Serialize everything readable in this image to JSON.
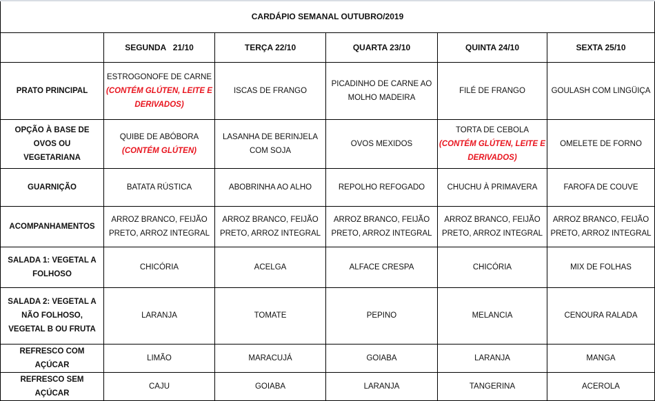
{
  "title": "CARDÁPIO SEMANAL OUTUBRO/2019",
  "days": [
    "SEGUNDA   21/10",
    "TERÇA 22/10",
    "QUARTA 23/10",
    "QUINTA 24/10",
    "SEXTA 25/10"
  ],
  "note_color": "#e8141e",
  "rows": [
    {
      "label": "PRATO PRINCIPAL",
      "cells": [
        {
          "text": "ESTROGONOFE DE CARNE",
          "note": "(CONTÉM GLÚTEN, LEITE E DERIVADOS)"
        },
        {
          "text": "ISCAS DE FRANGO"
        },
        {
          "text": "PICADINHO DE CARNE AO MOLHO MADEIRA"
        },
        {
          "text": "FILÉ DE FRANGO"
        },
        {
          "text": "GOULASH COM LINGÜIÇA"
        }
      ]
    },
    {
      "label": "OPÇÃO À BASE DE OVOS OU VEGETARIANA",
      "cells": [
        {
          "text": "QUIBE DE ABÓBORA",
          "note": "(CONTÉM GLÚTEN)"
        },
        {
          "text": "LASANHA DE BERINJELA COM SOJA"
        },
        {
          "text": "OVOS MEXIDOS"
        },
        {
          "text": "TORTA DE CEBOLA",
          "note": "(CONTÉM GLÚTEN, LEITE E DERIVADOS)"
        },
        {
          "text": "OMELETE DE FORNO"
        }
      ]
    },
    {
      "label": "GUARNIÇÃO",
      "cells": [
        {
          "text": "BATATA RÚSTICA"
        },
        {
          "text": "ABOBRINHA AO ALHO"
        },
        {
          "text": "REPOLHO REFOGADO"
        },
        {
          "text": "CHUCHU À PRIMAVERA"
        },
        {
          "text": "FAROFA DE COUVE"
        }
      ]
    },
    {
      "label": "ACOMPANHAMENTOS",
      "cells": [
        {
          "text": "ARROZ BRANCO, FEIJÃO PRETO, ARROZ INTEGRAL"
        },
        {
          "text": "ARROZ BRANCO, FEIJÃO PRETO, ARROZ INTEGRAL"
        },
        {
          "text": "ARROZ BRANCO, FEIJÃO PRETO, ARROZ INTEGRAL"
        },
        {
          "text": "ARROZ BRANCO, FEIJÃO PRETO, ARROZ INTEGRAL"
        },
        {
          "text": "ARROZ BRANCO, FEIJÃO PRETO, ARROZ INTEGRAL"
        }
      ]
    },
    {
      "label": "SALADA 1: VEGETAL A FOLHOSO",
      "cells": [
        {
          "text": "CHICÓRIA"
        },
        {
          "text": "ACELGA"
        },
        {
          "text": "ALFACE CRESPA"
        },
        {
          "text": "CHICÓRIA"
        },
        {
          "text": "MIX DE FOLHAS"
        }
      ]
    },
    {
      "label": "SALADA 2: VEGETAL A NÃO FOLHOSO, VEGETAL B OU FRUTA",
      "cells": [
        {
          "text": "LARANJA"
        },
        {
          "text": "TOMATE"
        },
        {
          "text": "PEPINO"
        },
        {
          "text": "MELANCIA"
        },
        {
          "text": "CENOURA RALADA"
        }
      ]
    },
    {
      "label": "REFRESCO COM AÇÚCAR",
      "cells": [
        {
          "text": "LIMÃO"
        },
        {
          "text": "MARACUJÁ"
        },
        {
          "text": "GOIABA"
        },
        {
          "text": "LARANJA"
        },
        {
          "text": "MANGA"
        }
      ]
    },
    {
      "label": "REFRESCO SEM AÇÚCAR",
      "cells": [
        {
          "text": "CAJU"
        },
        {
          "text": "GOIABA"
        },
        {
          "text": "LARANJA"
        },
        {
          "text": "TANGERINA"
        },
        {
          "text": "ACEROLA"
        }
      ]
    }
  ]
}
